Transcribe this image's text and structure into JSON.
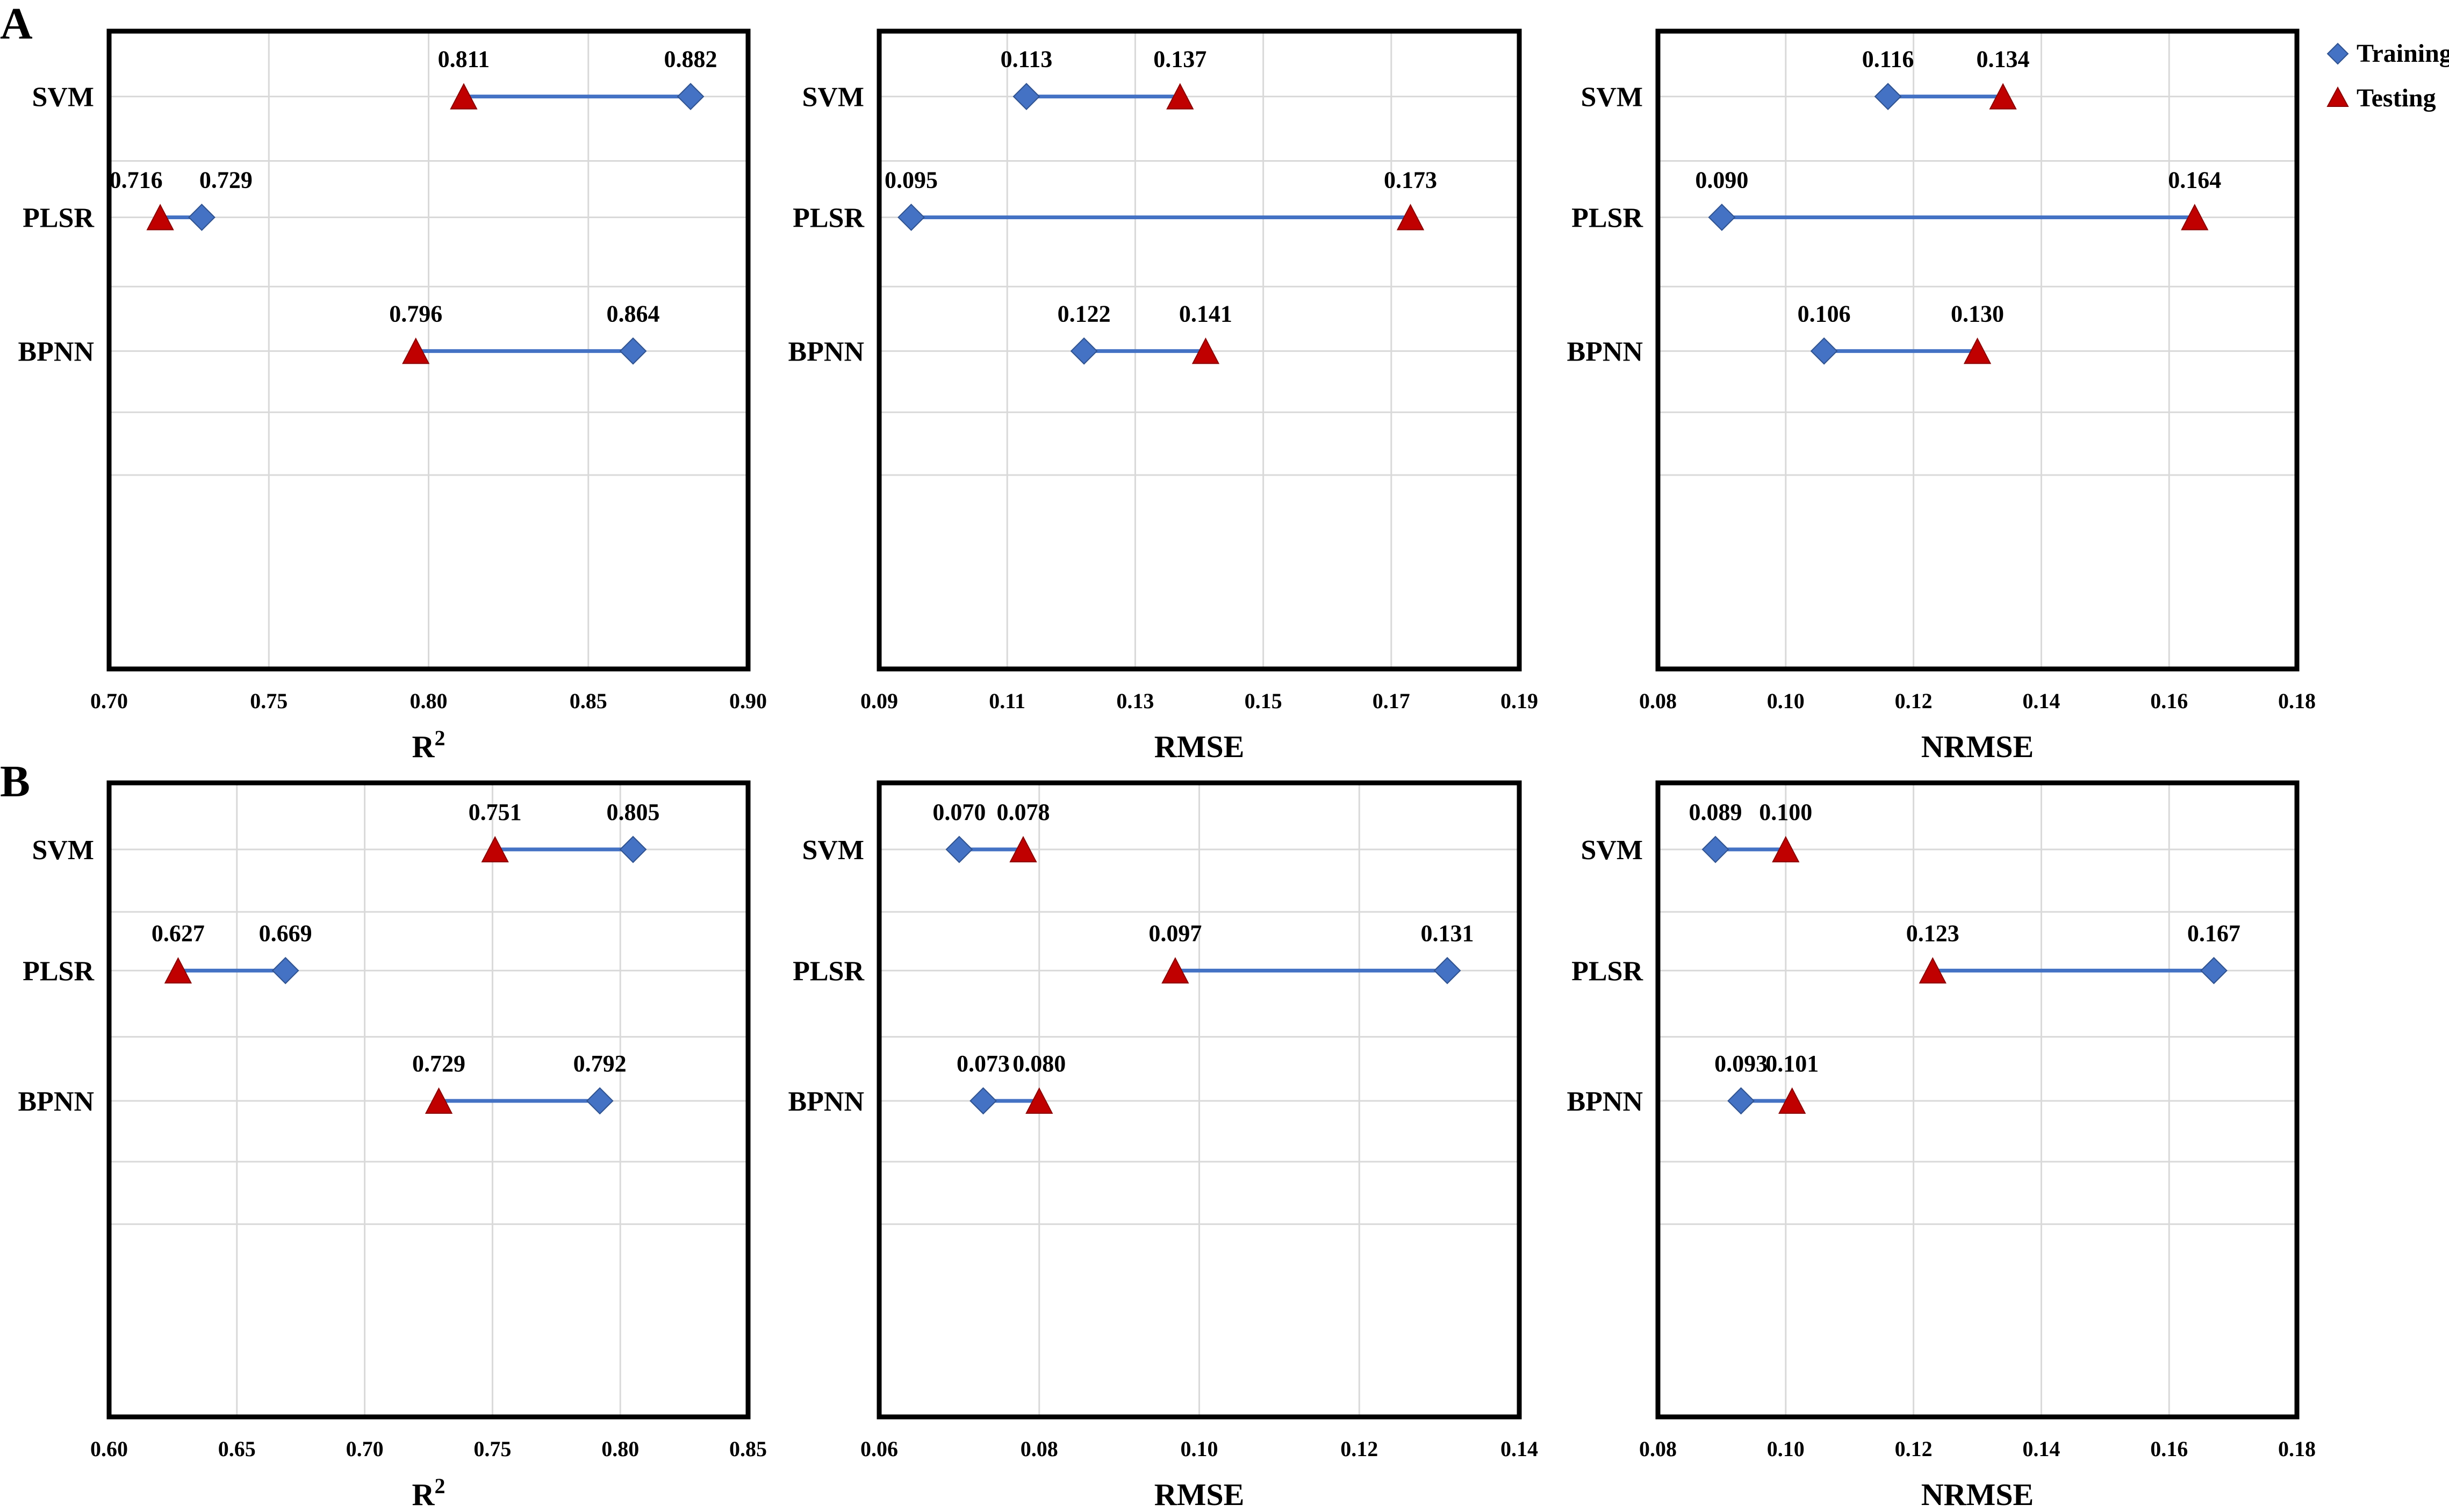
{
  "figure": {
    "panel_labels": [
      "A",
      "B"
    ],
    "legend": {
      "training_label": "Training",
      "testing_label": "Testing"
    },
    "colors": {
      "training": "#4472C4",
      "testing": "#C00000",
      "line": "#4472C4",
      "grid": "#D9D9D9",
      "frame": "#000000"
    }
  },
  "chart_data": [
    {
      "id": "A-R2",
      "panel": "A",
      "type": "dumbbell",
      "xlabel": "R",
      "xlabel_sup": "2",
      "categories": [
        "SVM",
        "PLSR",
        "BPNN"
      ],
      "xlim": [
        0.7,
        0.9
      ],
      "xticks": [
        0.7,
        0.75,
        0.8,
        0.85,
        0.9
      ],
      "tick_labels": [
        "0.70",
        "0.75",
        "0.80",
        "0.85",
        "0.90"
      ],
      "series": [
        {
          "name": "Training",
          "values": [
            0.882,
            0.729,
            0.864
          ],
          "labels": [
            "0.882",
            "0.729",
            "0.864"
          ]
        },
        {
          "name": "Testing",
          "values": [
            0.811,
            0.716,
            0.796
          ],
          "labels": [
            "0.811",
            "0.716",
            "0.796"
          ]
        }
      ]
    },
    {
      "id": "A-RMSE",
      "panel": "A",
      "type": "dumbbell",
      "xlabel": "RMSE",
      "xlabel_sup": "",
      "categories": [
        "SVM",
        "PLSR",
        "BPNN"
      ],
      "xlim": [
        0.09,
        0.19
      ],
      "xticks": [
        0.09,
        0.11,
        0.13,
        0.15,
        0.17,
        0.19
      ],
      "tick_labels": [
        "0.09",
        "0.11",
        "0.13",
        "0.15",
        "0.17",
        "0.19"
      ],
      "series": [
        {
          "name": "Training",
          "values": [
            0.113,
            0.095,
            0.122
          ],
          "labels": [
            "0.113",
            "0.095",
            "0.122"
          ]
        },
        {
          "name": "Testing",
          "values": [
            0.137,
            0.173,
            0.141
          ],
          "labels": [
            "0.137",
            "0.173",
            "0.141"
          ]
        }
      ]
    },
    {
      "id": "A-NRMSE",
      "panel": "A",
      "type": "dumbbell",
      "xlabel": "NRMSE",
      "xlabel_sup": "",
      "categories": [
        "SVM",
        "PLSR",
        "BPNN"
      ],
      "xlim": [
        0.08,
        0.18
      ],
      "xticks": [
        0.08,
        0.1,
        0.12,
        0.14,
        0.16,
        0.18
      ],
      "tick_labels": [
        "0.08",
        "0.10",
        "0.12",
        "0.14",
        "0.16",
        "0.18"
      ],
      "series": [
        {
          "name": "Training",
          "values": [
            0.116,
            0.09,
            0.106
          ],
          "labels": [
            "0.116",
            "0.090",
            "0.106"
          ]
        },
        {
          "name": "Testing",
          "values": [
            0.134,
            0.164,
            0.13
          ],
          "labels": [
            "0.134",
            "0.164",
            "0.130"
          ]
        }
      ]
    },
    {
      "id": "B-R2",
      "panel": "B",
      "type": "dumbbell",
      "xlabel": "R",
      "xlabel_sup": "2",
      "categories": [
        "SVM",
        "PLSR",
        "BPNN"
      ],
      "xlim": [
        0.6,
        0.85
      ],
      "xticks": [
        0.6,
        0.65,
        0.7,
        0.75,
        0.8,
        0.85
      ],
      "tick_labels": [
        "0.60",
        "0.65",
        "0.70",
        "0.75",
        "0.80",
        "0.85"
      ],
      "series": [
        {
          "name": "Training",
          "values": [
            0.805,
            0.669,
            0.792
          ],
          "labels": [
            "0.805",
            "0.669",
            "0.792"
          ]
        },
        {
          "name": "Testing",
          "values": [
            0.751,
            0.627,
            0.729
          ],
          "labels": [
            "0.751",
            "0.627",
            "0.729"
          ]
        }
      ]
    },
    {
      "id": "B-RMSE",
      "panel": "B",
      "type": "dumbbell",
      "xlabel": "RMSE",
      "xlabel_sup": "",
      "categories": [
        "SVM",
        "PLSR",
        "BPNN"
      ],
      "xlim": [
        0.06,
        0.14
      ],
      "xticks": [
        0.06,
        0.08,
        0.1,
        0.12,
        0.14
      ],
      "tick_labels": [
        "0.06",
        "0.08",
        "0.10",
        "0.12",
        "0.14"
      ],
      "series": [
        {
          "name": "Training",
          "values": [
            0.07,
            0.131,
            0.073
          ],
          "labels": [
            "0.070",
            "0.131",
            "0.073"
          ]
        },
        {
          "name": "Testing",
          "values": [
            0.078,
            0.097,
            0.08
          ],
          "labels": [
            "0.078",
            "0.097",
            "0.080"
          ]
        }
      ]
    },
    {
      "id": "B-NRMSE",
      "panel": "B",
      "type": "dumbbell",
      "xlabel": "NRMSE",
      "xlabel_sup": "",
      "categories": [
        "SVM",
        "PLSR",
        "BPNN"
      ],
      "xlim": [
        0.08,
        0.18
      ],
      "xticks": [
        0.08,
        0.1,
        0.12,
        0.14,
        0.16,
        0.18
      ],
      "tick_labels": [
        "0.08",
        "0.10",
        "0.12",
        "0.14",
        "0.16",
        "0.18"
      ],
      "series": [
        {
          "name": "Training",
          "values": [
            0.089,
            0.167,
            0.093
          ],
          "labels": [
            "0.089",
            "0.167",
            "0.093"
          ]
        },
        {
          "name": "Testing",
          "values": [
            0.1,
            0.123,
            0.101
          ],
          "labels": [
            "0.100",
            "0.123",
            "0.101"
          ]
        }
      ]
    }
  ]
}
